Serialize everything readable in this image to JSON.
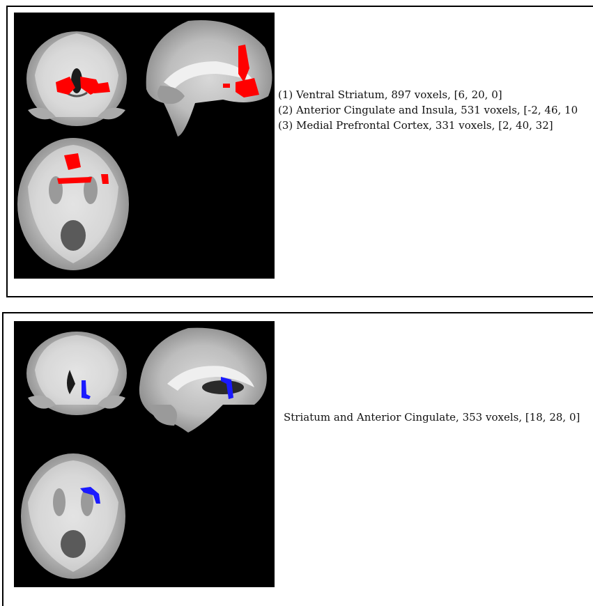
{
  "panels": [
    {
      "id": "top",
      "overlay_color": "#ff0000",
      "clusters": [
        {
          "label": "(1) Ventral Striatum, 897 voxels, [6, 20, 0]"
        },
        {
          "label": "(2) Anterior Cingulate and Insula, 531 voxels, [-2, 46, 10"
        },
        {
          "label": "(3) Medial Prefrontal Cortex, 331 voxels, [2, 40, 32]"
        }
      ]
    },
    {
      "id": "bottom",
      "overlay_color": "#1a1aff",
      "clusters": [
        {
          "label": "Striatum and Anterior Cingulate, 353 voxels, [18, 28, 0]"
        }
      ]
    }
  ]
}
